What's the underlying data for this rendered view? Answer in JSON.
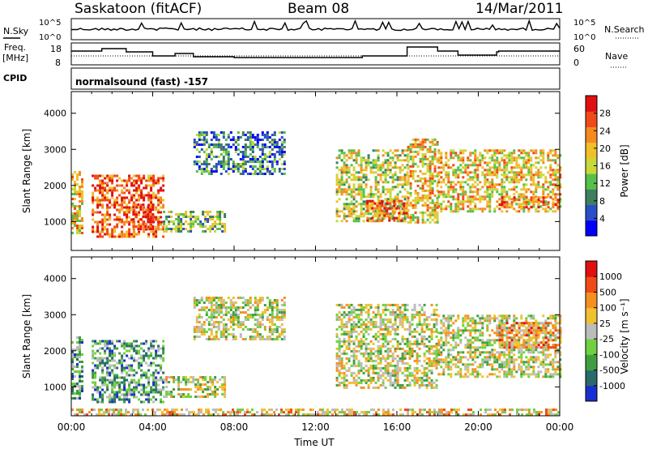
{
  "header": {
    "station": "Saskatoon (fitACF)",
    "beam": "Beam 08",
    "date": "14/Mar/2011"
  },
  "strip_labels": {
    "nsky": "N.Sky",
    "nsky_ticks": [
      "10^5",
      "10^0"
    ],
    "nsearch": "N.Search",
    "nsearch_ticks": [
      "10^5",
      "10^0"
    ],
    "freq_line1": "Freq.",
    "freq_line2": "[MHz]",
    "freq_ticks": [
      "18",
      "8"
    ],
    "nave": "Nave",
    "nave_ticks": [
      "60",
      "0"
    ],
    "cpid": "CPID",
    "cpid_text": "normalsound (fast) -157"
  },
  "chart_data": [
    {
      "type": "heatmap",
      "name": "power",
      "ylabel": "Slant Range [km]",
      "yticks": [
        1000,
        2000,
        3000,
        4000
      ],
      "ylim": [
        200,
        4600
      ],
      "xlim_hours": [
        0,
        24
      ],
      "colorbar": {
        "label": "Power [dB]",
        "ticks": [
          "4",
          "8",
          "12",
          "16",
          "20",
          "24",
          "28"
        ],
        "colors": [
          "#0000ff",
          "#2a4fc8",
          "#3f7f5f",
          "#55c04a",
          "#c8d83a",
          "#f0c02a",
          "#f58a20",
          "#f04a18",
          "#e01010"
        ]
      },
      "regions": [
        {
          "t": [
            0.0,
            0.5
          ],
          "r": [
            700,
            2400
          ],
          "level": 0.6
        },
        {
          "t": [
            1.0,
            4.5
          ],
          "r": [
            600,
            2300
          ],
          "level": 0.8
        },
        {
          "t": [
            3.0,
            4.0
          ],
          "r": [
            800,
            1500
          ],
          "level": 0.95
        },
        {
          "t": [
            4.5,
            7.5
          ],
          "r": [
            700,
            1300
          ],
          "level": 0.4
        },
        {
          "t": [
            6.0,
            10.5
          ],
          "r": [
            2300,
            3500
          ],
          "level": 0.25
        },
        {
          "t": [
            13.0,
            16.5
          ],
          "r": [
            1000,
            3000
          ],
          "level": 0.5
        },
        {
          "t": [
            14.5,
            16.5
          ],
          "r": [
            1000,
            1600
          ],
          "level": 0.8
        },
        {
          "t": [
            16.5,
            18.0
          ],
          "r": [
            1000,
            3300
          ],
          "level": 0.6
        },
        {
          "t": [
            18.0,
            24.0
          ],
          "r": [
            1300,
            3000
          ],
          "level": 0.6
        },
        {
          "t": [
            21.0,
            24.0
          ],
          "r": [
            1400,
            1700
          ],
          "level": 0.85
        }
      ]
    },
    {
      "type": "heatmap",
      "name": "velocity",
      "ylabel": "Slant Range [km]",
      "yticks": [
        1000,
        2000,
        3000,
        4000
      ],
      "ylim": [
        200,
        4600
      ],
      "xlim_hours": [
        0,
        24
      ],
      "xlabel": "Time UT",
      "xticks": [
        "00:00",
        "04:00",
        "08:00",
        "12:00",
        "16:00",
        "20:00",
        "00:00"
      ],
      "colorbar": {
        "label": "Velocity [m s⁻¹]",
        "ticks": [
          "1000",
          "500",
          "100",
          "25",
          "-25",
          "-100",
          "-500",
          "-1000"
        ],
        "colors": [
          "#1a2fd0",
          "#2a6a6a",
          "#3f9f3f",
          "#70d040",
          "#bcbcbc",
          "#f0c030",
          "#f59020",
          "#f04a18",
          "#e01010"
        ]
      },
      "regions": [
        {
          "t": [
            0.0,
            0.5
          ],
          "r": [
            700,
            2400
          ],
          "v": 0.3
        },
        {
          "t": [
            1.0,
            4.5
          ],
          "r": [
            600,
            2300
          ],
          "v": 0.3
        },
        {
          "t": [
            4.5,
            7.5
          ],
          "r": [
            700,
            1300
          ],
          "v": 0.5
        },
        {
          "t": [
            6.0,
            10.5
          ],
          "r": [
            2300,
            3500
          ],
          "v": 0.5
        },
        {
          "t": [
            13.0,
            18.0
          ],
          "r": [
            1000,
            3300
          ],
          "v": 0.5
        },
        {
          "t": [
            18.0,
            24.0
          ],
          "r": [
            1300,
            3000
          ],
          "v": 0.5
        },
        {
          "t": [
            21.0,
            24.0
          ],
          "r": [
            2100,
            2800
          ],
          "v": 0.7
        },
        {
          "t": [
            0.0,
            24.0
          ],
          "r": [
            200,
            400
          ],
          "v": 0.6
        }
      ]
    }
  ]
}
